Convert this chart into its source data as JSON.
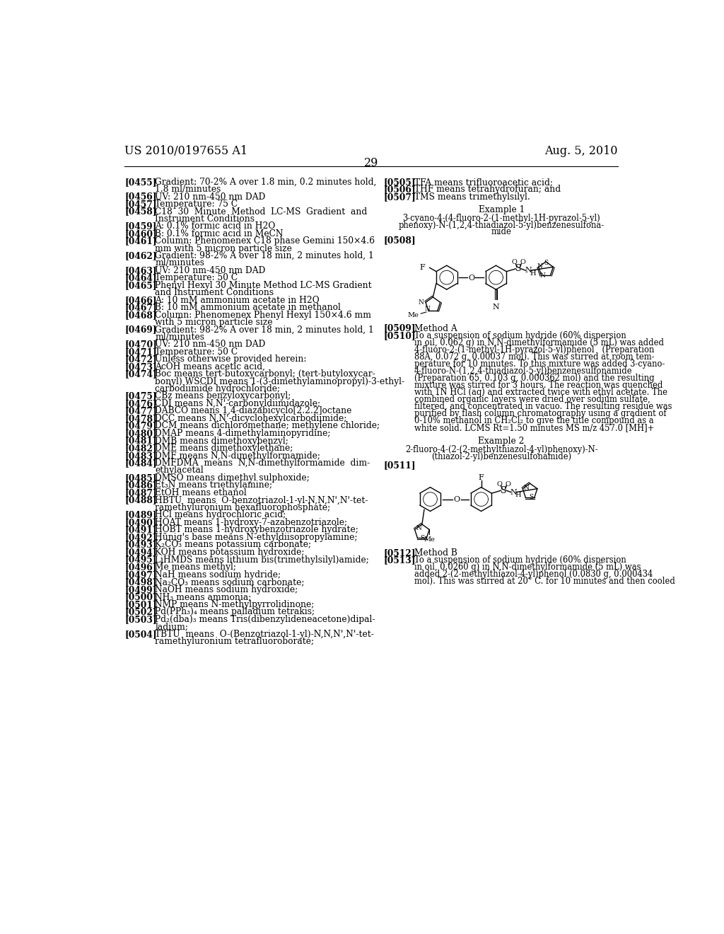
{
  "bg_color": "#ffffff",
  "header_left": "US 2010/0197655 A1",
  "header_right": "Aug. 5, 2010",
  "page_number": "29",
  "left_col_entries": [
    {
      "tag": "[0455]",
      "text": "Gradient: 70-2% A over 1.8 min, 0.2 minutes hold,\n1.8 ml/minutes"
    },
    {
      "tag": "[0456]",
      "text": "UV: 210 nm-450 nm DAD"
    },
    {
      "tag": "[0457]",
      "text": "Temperature: 75 C"
    },
    {
      "tag": "[0458]",
      "text": "C18  30  Minute  Method  LC-MS  Gradient  and\nInstrument Conditions"
    },
    {
      "tag": "[0459]",
      "text": "A: 0.1% formic acid in H2O"
    },
    {
      "tag": "[0460]",
      "text": "B: 0.1% formic acid in MeCN"
    },
    {
      "tag": "[0461]",
      "text": "Column: Phenomenex C18 phase Gemini 150×4.6\nmm with 5 micron particle size"
    },
    {
      "tag": "[0462]",
      "text": "Gradient: 98-2% A over 18 min, 2 minutes hold, 1\nml/minutes"
    },
    {
      "tag": "[0463]",
      "text": "UV: 210 nm-450 nm DAD"
    },
    {
      "tag": "[0464]",
      "text": "Temperature: 50 C"
    },
    {
      "tag": "[0465]",
      "text": "Phenyl Hexyl 30 Minute Method LC-MS Gradient\nand Instrument Conditions"
    },
    {
      "tag": "[0466]",
      "text": "A: 10 mM ammonium acetate in H2O"
    },
    {
      "tag": "[0467]",
      "text": "B: 10 mM ammonium acetate in methanol"
    },
    {
      "tag": "[0468]",
      "text": "Column: Phenomenex Phenyl Hexyl 150×4.6 mm\nwith 5 micron particle size"
    },
    {
      "tag": "[0469]",
      "text": "Gradient: 98-2% A over 18 min, 2 minutes hold, 1\nml/minutes"
    },
    {
      "tag": "[0470]",
      "text": "UV: 210 nm-450 nm DAD"
    },
    {
      "tag": "[0471]",
      "text": "Temperature: 50 C"
    },
    {
      "tag": "[0472]",
      "text": "Unless otherwise provided herein:"
    },
    {
      "tag": "[0473]",
      "text": "AcOH means acetic acid,"
    },
    {
      "tag": "[0474]",
      "text": "Boc means tert-butoxycarbonyl; (tert-butyloxycar-\nbonyl) WSCDI means 1-(3-dimethylaminopropyl)-3-ethyl-\ncarbodiimide hydrochloride;"
    },
    {
      "tag": "[0475]",
      "text": "CBz means benzyloxycarbonyl;"
    },
    {
      "tag": "[0476]",
      "text": "CDI means N,N'-carbonyldiimidazole;"
    },
    {
      "tag": "[0477]",
      "text": "DABCO means 1,4-diazabicyclo[2.2.2]octane"
    },
    {
      "tag": "[0478]",
      "text": "DCC means N,N'-dicyclohexylcarbodiimide;"
    },
    {
      "tag": "[0479]",
      "text": "DCM means dichloromethane; methylene chloride;"
    },
    {
      "tag": "[0480]",
      "text": "DMAP means 4-dimethylaminopyridine;"
    },
    {
      "tag": "[0481]",
      "text": "DMB means dimethoxybenzyl;"
    },
    {
      "tag": "[0482]",
      "text": "DME means dimethoxylethane;"
    },
    {
      "tag": "[0483]",
      "text": "DMF means N,N-dimethylformamide;"
    },
    {
      "tag": "[0484]",
      "text": "DMFDMA  means  N,N-dimethylformamide  dim-\nethylacetal"
    },
    {
      "tag": "[0485]",
      "text": "DMSO means dimethyl sulphoxide;"
    },
    {
      "tag": "[0486]",
      "text": "Et₃N means triethylamine;"
    },
    {
      "tag": "[0487]",
      "text": "EtOH means ethanol"
    },
    {
      "tag": "[0488]",
      "text": "HBTU  means  O-benzotriazol-1-yl-N,N,N',N'-tet-\nramethyluronium hexafluorophosphate;"
    },
    {
      "tag": "[0489]",
      "text": "HCl means hydrochloric acid;"
    },
    {
      "tag": "[0490]",
      "text": "HOAT means 1-hydroxy-7-azabenzotriazole;"
    },
    {
      "tag": "[0491]",
      "text": "HOBT means 1-hydroxybenzotriazole hydrate;"
    },
    {
      "tag": "[0492]",
      "text": "Hünig's base means N-ethyldiisopropylamine;"
    },
    {
      "tag": "[0493]",
      "text": "K₂CO₃ means potassium carbonate;"
    },
    {
      "tag": "[0494]",
      "text": "KOH means potassium hydroxide;"
    },
    {
      "tag": "[0495]",
      "text": "LiHMDS means lithium bis(trimethylsilyl)amide;"
    },
    {
      "tag": "[0496]",
      "text": "Me means methyl;"
    },
    {
      "tag": "[0497]",
      "text": "NaH means sodium hydride;"
    },
    {
      "tag": "[0498]",
      "text": "Na₂CO₃ means sodium carbonate;"
    },
    {
      "tag": "[0499]",
      "text": "NaOH means sodium hydroxide;"
    },
    {
      "tag": "[0500]",
      "text": "NH₃ means ammonia;"
    },
    {
      "tag": "[0501]",
      "text": "NMP means N-methylpyrrolidinone;"
    },
    {
      "tag": "[0502]",
      "text": "Pd(PPh₃)₄ means palladium tetrakis;"
    },
    {
      "tag": "[0503]",
      "text": "Pd₂(dba)₃ means Tris(dibenzylideneacetone)dipal-\nladium;"
    },
    {
      "tag": "[0504]",
      "text": "TBTU  means  O-(Benzotriazol-1-yl)-N,N,N',N'-tet-\nramethyluronium tetrafluoroborate;"
    }
  ],
  "right_col_top": [
    {
      "tag": "[0505]",
      "text": "TFA means trifluoroacetic acid;"
    },
    {
      "tag": "[0506]",
      "text": "THF means tetrahydrofuran; and"
    },
    {
      "tag": "[0507]",
      "text": "TMS means trimethylsilyl."
    }
  ],
  "example1_title": "Example 1",
  "example1_name_lines": [
    "3-cyano-4-(4-fluoro-2-(1-methyl-1H-pyrazol-5-yl)",
    "phenoxy)-N-(1,2,4-thiadiazol-5-yl)benzenesulfona-",
    "mide"
  ],
  "example1_tag": "[0508]",
  "example1_method_tag": "[0509]",
  "example1_method": "Method A",
  "example1_body_tag": "[0510]",
  "example1_body_lines": [
    "To a suspension of sodium hydride (60% dispersion",
    "in oil, 0.062 g) in N,N-dimethylformamide (5 mL) was added",
    "4-fluoro-2-(1-methyl-1H-pyrazol-5-yl)phenol   (Preparation",
    "88A, 0.072 g, 0.00037 mol). This was stirred at room tem-",
    "perature for 10 minutes. To this mixture was added 3-cyano-",
    "4-fluoro-N-(1,2,4-thiadiazol-5-yl)benzenesulfonamide",
    "(Preparation 65, 0.103 g, 0.000362 mol) and the resulting",
    "mixture was stirred for 3 hours. The reaction was quenched",
    "with 1N HCl (aq) and extracted twice with ethyl acetate. The",
    "combined organic layers were dried over sodium sulfate,",
    "filtered, and concentrated in vacuo. The resulting residue was",
    "purified by flash column chromatography using a gradient of",
    "0-10% methanol in CH₂Cl₂ to give the title compound as a",
    "white solid. LCMS Rt=1.50 minutes MS m/z 457.0 [MH]+"
  ],
  "example2_title": "Example 2",
  "example2_name_lines": [
    "2-fluoro-4-(2-(2-methylthiazol-4-yl)phenoxy)-N-",
    "(thiazol-2-yl)benzenesulfonamide)"
  ],
  "example2_tag": "[0511]",
  "example2_method_tag": "[0512]",
  "example2_method": "Method B",
  "example2_body_tag": "[0513]",
  "example2_body_lines": [
    "To a suspension of sodium hydride (60% dispersion",
    "in oil, 0.0260 g) in N,N-dimethylformamide (5 mL) was",
    "added 2-(2-methylthiazol-4-yl)phenol (0.0830 g, 0.000434",
    "mol). This was stirred at 20° C. for 10 minutes and then cooled"
  ]
}
